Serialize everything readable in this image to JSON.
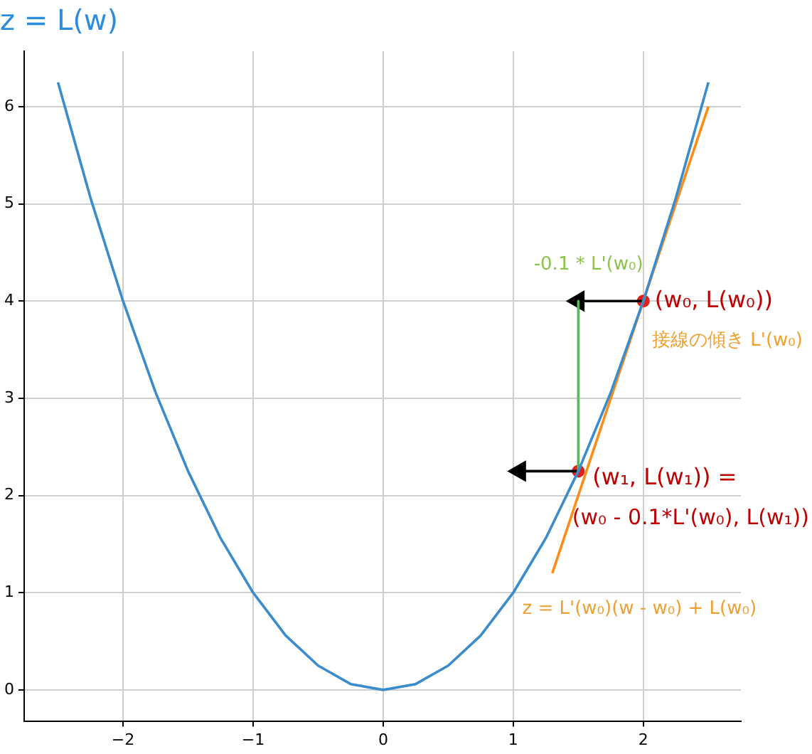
{
  "chart_data": {
    "type": "line",
    "title": "z = L(w)",
    "x": [
      -2.5,
      -2.25,
      -2,
      -1.75,
      -1.5,
      -1.25,
      -1,
      -0.75,
      -0.5,
      -0.25,
      0,
      0.25,
      0.5,
      0.75,
      1,
      1.25,
      1.5,
      1.75,
      2,
      2.25,
      2.5
    ],
    "series": [
      {
        "color": "#3a8ccc",
        "values": [
          6.25,
          5.06,
          4,
          3.06,
          2.25,
          1.56,
          1,
          0.56,
          0.25,
          0.06,
          0,
          0.06,
          0.25,
          0.56,
          1,
          1.56,
          2.25,
          3.06,
          4,
          5.06,
          6.25
        ]
      },
      {
        "color": "#ff8c1a",
        "x": [
          1.3,
          2.5
        ],
        "values": [
          1.2,
          6
        ]
      },
      {
        "color": "#5cb85c",
        "x": [
          1.5,
          1.5
        ],
        "values": [
          4,
          2.25
        ]
      },
      {
        "color": "#000000",
        "marker": "triangle",
        "x": [
          2,
          1.5
        ],
        "values": [
          4,
          4
        ]
      },
      {
        "color": "#000000",
        "marker": "triangle",
        "x": [
          1.5,
          1.05
        ],
        "values": [
          2.25,
          2.25
        ]
      },
      {
        "type": "scatter",
        "color": "#e02020",
        "marker": "circle",
        "x": [
          2,
          1.5
        ],
        "values": [
          4,
          2.25
        ]
      }
    ],
    "xlim": [
      -2.76,
      2.75
    ],
    "ylim": [
      -0.32,
      6.57
    ],
    "xticks": [
      -2,
      -1,
      0,
      1,
      2
    ],
    "yticks": [
      0,
      1,
      2,
      3,
      4,
      5,
      6
    ],
    "grid": true,
    "legend": false,
    "annotations": [
      "-0.1 * L'(w₀)",
      {
        "text": "(w₀, L(w₀))",
        "x": 2,
        "y": 4
      },
      "接線の傾き L'(w₀)",
      "(w₁, L(w₁)) =",
      "(w₀ - 0.1*L'(w₀), L(w₁))",
      "z = L'(w₀)(w - w₀) + L(w₀)"
    ]
  }
}
